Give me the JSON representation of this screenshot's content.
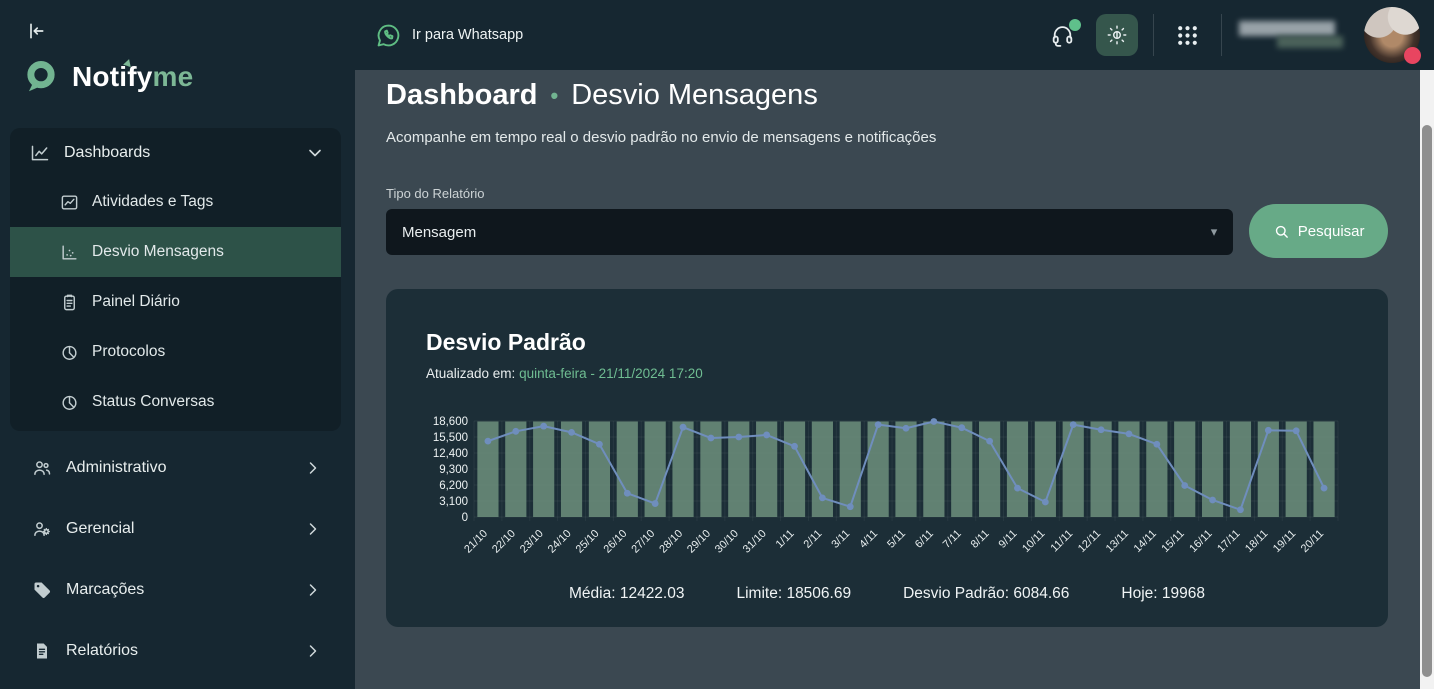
{
  "sidebar": {
    "logo": {
      "primary": "Notify",
      "accent": "me"
    },
    "dashboards_group": {
      "label": "Dashboards",
      "icon": "chart-line-icon",
      "chevron": "down",
      "items": [
        {
          "label": "Atividades e Tags",
          "icon": "line-chart-icon",
          "active": false
        },
        {
          "label": "Desvio Mensagens",
          "icon": "scatter-chart-icon",
          "active": true
        },
        {
          "label": "Painel Diário",
          "icon": "clipboard-icon",
          "active": false
        },
        {
          "label": "Protocolos",
          "icon": "pie-chart-icon",
          "active": false
        },
        {
          "label": "Status Conversas",
          "icon": "pie-chart-icon",
          "active": false
        }
      ]
    },
    "items": [
      {
        "label": "Administrativo",
        "icon": "users-icon",
        "chevron": "right"
      },
      {
        "label": "Gerencial",
        "icon": "users-gear-icon",
        "chevron": "right"
      },
      {
        "label": "Marcações",
        "icon": "tag-icon",
        "chevron": "right"
      },
      {
        "label": "Relatórios",
        "icon": "report-icon",
        "chevron": "right"
      }
    ]
  },
  "topbar": {
    "whatsapp_label": "Ir para Whatsapp",
    "icons": [
      "whatsapp-icon",
      "headset-icon",
      "theme-brightness-icon",
      "apps-grid-icon"
    ],
    "user": {
      "name_blurred": true,
      "has_notification_badge": true
    }
  },
  "page": {
    "title_primary": "Dashboard",
    "title_separator": "•",
    "title_secondary": "Desvio Mensagens",
    "subtitle": "Acompanhe em tempo real o desvio padrão no envio de mensagens e notificações"
  },
  "filter": {
    "label": "Tipo do Relatório",
    "select_value": "Mensagem",
    "select_caret": "▾",
    "search_button": "Pesquisar"
  },
  "card": {
    "title": "Desvio Padrão",
    "updated_prefix": "Atualizado em:",
    "updated_value": "quinta-feira - 21/11/2024 17:20",
    "stats": [
      {
        "label": "Média:",
        "value": "12422.03"
      },
      {
        "label": "Limite:",
        "value": "18506.69"
      },
      {
        "label": "Desvio Padrão:",
        "value": "6084.66"
      },
      {
        "label": "Hoje:",
        "value": "19968"
      }
    ]
  },
  "chart_data": {
    "type": "bar",
    "title": "Desvio Padrão",
    "categories": [
      "21/10",
      "22/10",
      "23/10",
      "24/10",
      "25/10",
      "26/10",
      "27/10",
      "28/10",
      "29/10",
      "30/10",
      "31/10",
      "1/11",
      "2/11",
      "3/11",
      "4/11",
      "5/11",
      "6/11",
      "7/11",
      "8/11",
      "9/11",
      "10/11",
      "11/11",
      "12/11",
      "13/11",
      "14/11",
      "15/11",
      "16/11",
      "17/11",
      "18/11",
      "19/11",
      "20/11"
    ],
    "series": [
      {
        "name": "Limite",
        "type": "bar",
        "color": "#6b8d7b",
        "constant_value": 18506.69
      },
      {
        "name": "Mensagens",
        "type": "line",
        "color": "#6f8ebd",
        "values": [
          14700,
          16600,
          17600,
          16400,
          14100,
          4600,
          2600,
          17400,
          15300,
          15500,
          15900,
          13700,
          3700,
          2000,
          17900,
          17200,
          18500,
          17300,
          14700,
          5600,
          2900,
          17900,
          16900,
          16100,
          14100,
          6100,
          3300,
          1400,
          16800,
          16700,
          5600
        ]
      }
    ],
    "ylim": [
      0,
      18600
    ],
    "yticks": [
      0,
      3100,
      6200,
      9300,
      12400,
      15500,
      18600
    ],
    "ytick_labels": [
      "0",
      "3,100",
      "6,200",
      "9,300",
      "12,400",
      "15,500",
      "18,600"
    ],
    "grid": true,
    "legend_position": "none"
  },
  "colors": {
    "accent_green": "#72b491",
    "button_green": "#67aa87",
    "updated_green": "#6fbd92",
    "bar_green": "#6b8d7b",
    "line_blue": "#6f8ebd",
    "badge_red": "#e84560",
    "online_dot_green": "#5fc08b",
    "active_item_bg": "#2d5248"
  }
}
